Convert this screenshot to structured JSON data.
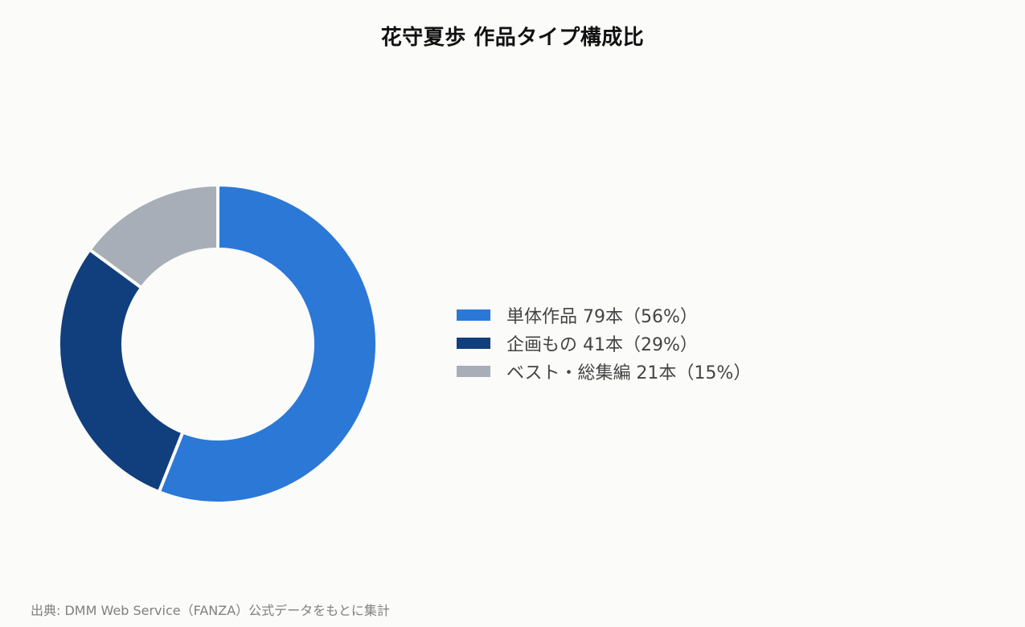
{
  "chart_data": {
    "type": "pie",
    "title": "花守夏歩 作品タイプ構成比",
    "categories": [
      "単体作品",
      "企画もの",
      "ベスト・総集編"
    ],
    "values": [
      79,
      41,
      21
    ],
    "percentages": [
      56,
      29,
      15
    ],
    "colors": [
      "#2b78d7",
      "#113f7d",
      "#a7aeb8"
    ],
    "legend_labels": [
      "単体作品 79本（56%）",
      "企画もの 41本（29%）",
      "ベスト・総集編 21本（15%）"
    ],
    "legend_position": "right",
    "style": "donut"
  },
  "source_note": "出典: DMM Web Service（FANZA）公式データをもとに集計"
}
